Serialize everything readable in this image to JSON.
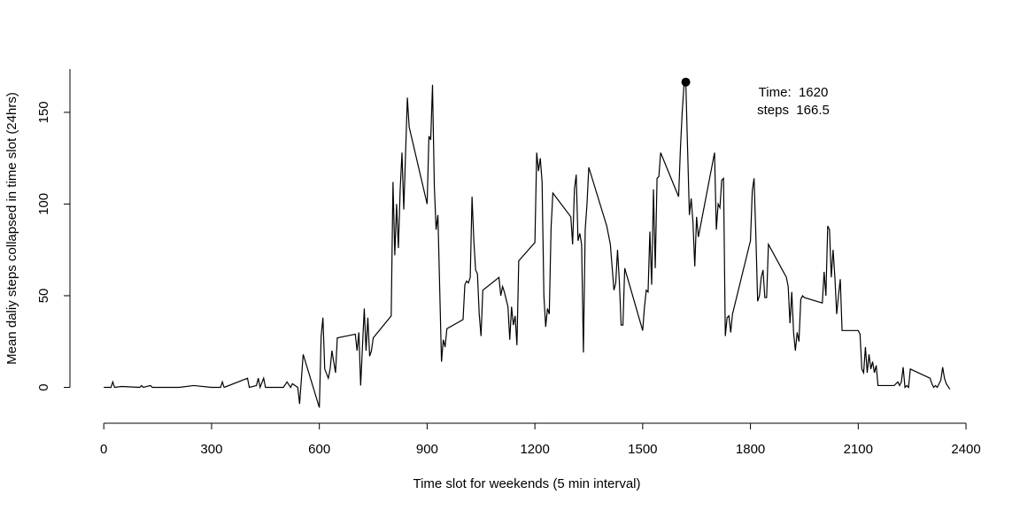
{
  "chart_data": {
    "type": "line",
    "xlabel": "Time slot for weekends (5 min interval)",
    "ylabel": "Mean daliy steps collapsed in time slot (24hrs)",
    "x": [
      0,
      20,
      25,
      30,
      50,
      100,
      105,
      110,
      130,
      135,
      200,
      210,
      250,
      300,
      325,
      330,
      335,
      400,
      405,
      425,
      430,
      435,
      445,
      450,
      500,
      510,
      520,
      525,
      540,
      545,
      555,
      600,
      605,
      610,
      615,
      625,
      630,
      635,
      645,
      650,
      700,
      705,
      710,
      715,
      725,
      730,
      735,
      740,
      745,
      750,
      800,
      805,
      810,
      815,
      820,
      825,
      830,
      835,
      845,
      850,
      900,
      905,
      910,
      915,
      920,
      925,
      930,
      940,
      945,
      950,
      955,
      1000,
      1005,
      1010,
      1015,
      1020,
      1025,
      1030,
      1035,
      1040,
      1045,
      1050,
      1055,
      1100,
      1105,
      1110,
      1115,
      1125,
      1130,
      1135,
      1140,
      1145,
      1150,
      1155,
      1200,
      1205,
      1210,
      1215,
      1220,
      1225,
      1230,
      1235,
      1240,
      1245,
      1250,
      1300,
      1305,
      1310,
      1315,
      1320,
      1325,
      1330,
      1335,
      1340,
      1345,
      1350,
      1400,
      1410,
      1420,
      1425,
      1430,
      1435,
      1440,
      1445,
      1450,
      1500,
      1505,
      1510,
      1515,
      1520,
      1525,
      1530,
      1535,
      1540,
      1545,
      1550,
      1600,
      1605,
      1610,
      1615,
      1620,
      1625,
      1630,
      1635,
      1640,
      1645,
      1650,
      1655,
      1700,
      1705,
      1710,
      1715,
      1720,
      1725,
      1730,
      1735,
      1740,
      1745,
      1750,
      1800,
      1805,
      1810,
      1815,
      1820,
      1825,
      1830,
      1835,
      1840,
      1845,
      1850,
      1900,
      1905,
      1910,
      1915,
      1920,
      1925,
      1930,
      1935,
      1940,
      1945,
      1950,
      2000,
      2005,
      2010,
      2015,
      2020,
      2025,
      2030,
      2035,
      2040,
      2045,
      2050,
      2055,
      2100,
      2105,
      2110,
      2115,
      2120,
      2125,
      2130,
      2135,
      2140,
      2145,
      2150,
      2155,
      2200,
      2205,
      2210,
      2215,
      2220,
      2225,
      2230,
      2235,
      2240,
      2245,
      2300,
      2305,
      2310,
      2315,
      2320,
      2330,
      2335,
      2340,
      2345,
      2355
    ],
    "values": [
      0,
      0,
      3,
      0,
      0.5,
      0,
      1,
      0,
      1,
      0,
      0,
      0,
      1,
      0,
      0,
      3,
      0,
      5,
      0,
      1,
      5,
      0,
      5,
      0,
      0,
      3,
      0,
      2,
      0,
      -9,
      18,
      -11,
      28,
      38,
      10,
      5,
      10,
      20,
      8,
      27,
      29,
      20,
      30,
      1,
      43,
      20,
      38,
      17,
      20,
      27,
      39,
      112,
      72,
      100,
      76,
      108,
      128,
      97,
      158,
      142,
      100,
      137,
      135,
      165,
      110,
      86,
      94,
      14,
      26,
      22,
      32,
      37,
      56,
      58,
      57,
      60,
      104,
      80,
      64,
      62,
      40,
      28,
      53,
      60,
      50,
      55,
      52,
      44,
      26,
      44,
      34,
      39,
      23,
      69,
      79,
      128,
      118,
      125,
      112,
      50,
      33,
      43,
      40,
      87,
      106,
      93,
      78,
      108,
      116,
      80,
      84,
      78,
      19,
      86,
      100,
      120,
      88,
      78,
      53,
      57,
      75,
      58,
      34,
      34,
      65,
      31,
      44,
      53,
      52,
      85,
      56,
      108,
      65,
      114,
      115,
      128,
      104,
      130,
      150,
      165,
      166.5,
      130,
      94,
      103,
      90,
      66,
      93,
      82,
      128,
      86,
      100,
      98,
      113,
      114,
      28,
      38,
      39,
      30,
      40,
      80,
      107,
      114,
      83,
      47,
      50,
      60,
      64,
      49,
      49,
      78,
      60,
      55,
      35,
      52,
      30,
      20,
      30,
      25,
      48,
      50,
      49,
      46,
      63,
      50,
      88,
      86,
      60,
      75,
      60,
      40,
      50,
      59,
      31,
      31,
      29,
      10,
      8,
      22,
      8,
      18,
      10,
      14,
      8,
      12,
      1,
      1,
      2,
      3,
      1,
      3,
      11,
      0,
      1,
      0,
      10,
      5,
      2,
      0,
      1,
      0,
      4,
      11,
      5,
      2,
      -1
    ],
    "color": "#000000",
    "xlim": [
      -94.2,
      2449.2
    ],
    "ylim": [
      -18.1,
      173.6
    ],
    "xticks": [
      0,
      300,
      600,
      900,
      1200,
      1500,
      1800,
      2100,
      2400
    ],
    "yticks": [
      0,
      50,
      100,
      150
    ],
    "highlight": {
      "x": 1620,
      "y": 166.5
    },
    "annotations": [
      "Time:  1620",
      "steps  166.5"
    ]
  }
}
